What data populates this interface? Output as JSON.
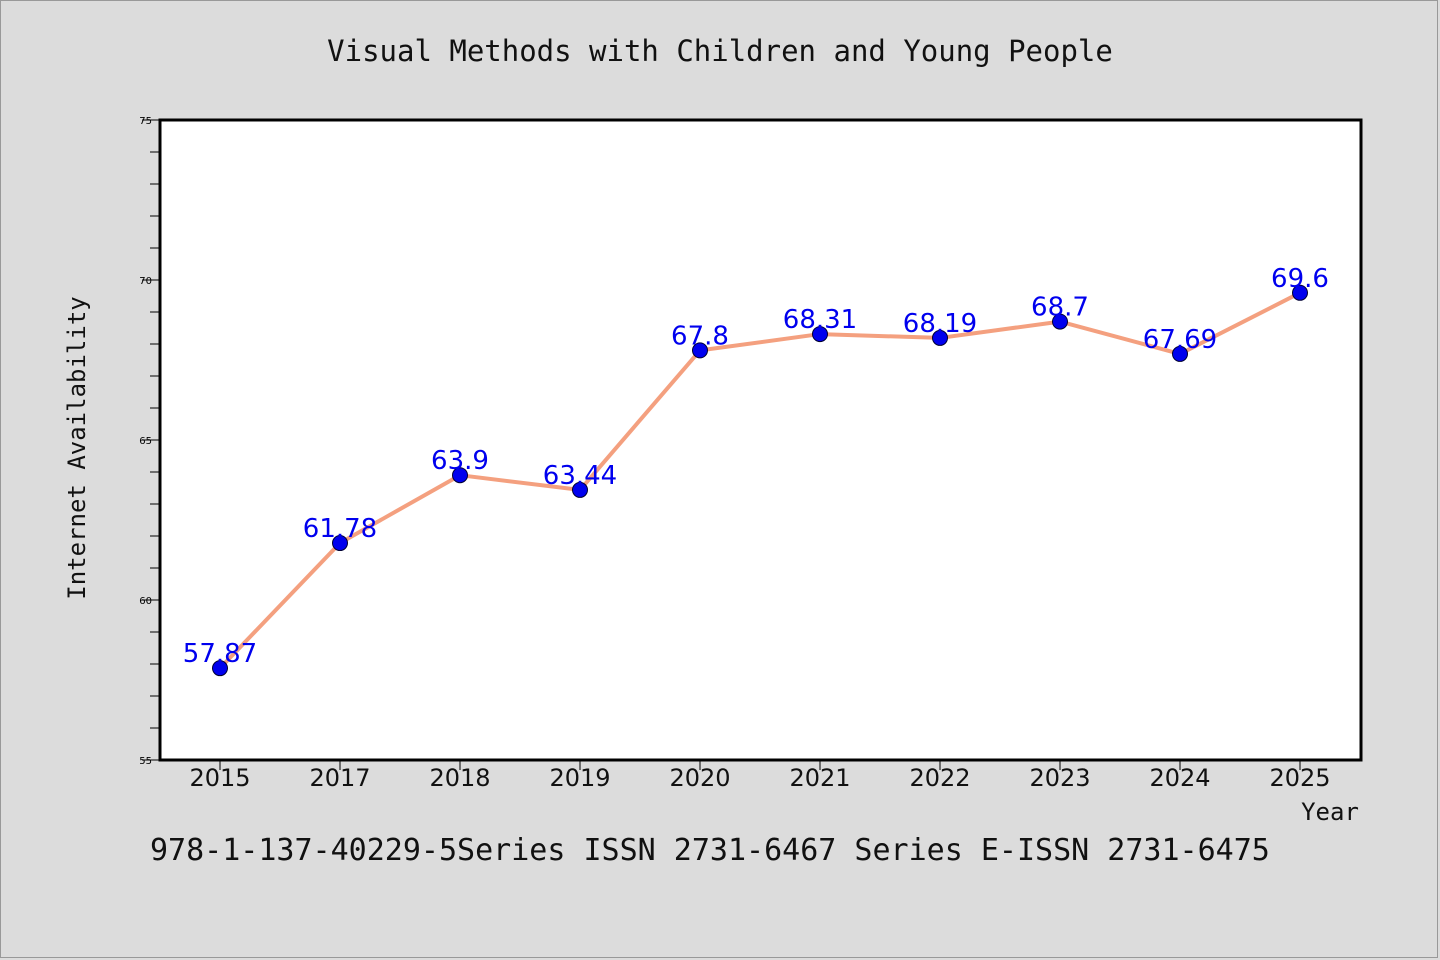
{
  "title": "Visual Methods with Children and Young People",
  "footer": "978-1-137-40229-5Series ISSN 2731-6467 Series E-ISSN 2731-6475",
  "chart_data": {
    "type": "line",
    "title": "Visual Methods with Children and Young People",
    "xlabel": "Year",
    "ylabel": "Internet Availability",
    "categories": [
      "2015",
      "2017",
      "2018",
      "2019",
      "2020",
      "2021",
      "2022",
      "2023",
      "2024",
      "2025"
    ],
    "values": [
      57.87,
      61.78,
      63.9,
      63.44,
      67.8,
      68.31,
      68.19,
      68.7,
      67.69,
      69.6
    ],
    "data_labels": [
      "57.87",
      "61.78",
      "63.9",
      "63.44",
      "67.8",
      "68.31",
      "68.19",
      "68.7",
      "67.69",
      "69.6"
    ],
    "ylim": [
      55,
      75
    ],
    "yticks": [
      "55",
      "60",
      "65",
      "70",
      "75"
    ],
    "grid": false,
    "line_color": "#f4a07f",
    "marker_color": "#0000ee",
    "label_color": "#0000ee"
  }
}
